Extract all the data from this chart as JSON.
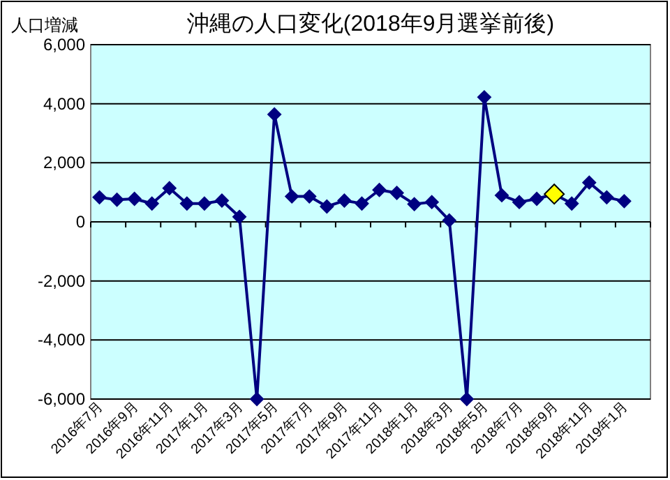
{
  "chart_data": {
    "type": "line",
    "title": "沖縄の人口変化(2018年9月選挙前後)",
    "ylabel": "人口増減",
    "categories": [
      "2016年7月",
      null,
      "2016年9月",
      null,
      "2016年11月",
      null,
      "2017年1月",
      null,
      "2017年3月",
      null,
      "2017年5月",
      null,
      "2017年7月",
      null,
      "2017年9月",
      null,
      "2017年11月",
      null,
      "2018年1月",
      null,
      "2018年3月",
      null,
      "2018年5月",
      null,
      "2018年7月",
      null,
      "2018年9月",
      null,
      "2018年11月",
      null,
      "2019年1月",
      null
    ],
    "series": [
      {
        "color": "#000080",
        "colors": [
          "#000080",
          "#000080",
          "#000080",
          "#000080",
          "#000080",
          "#000080",
          "#000080",
          "#000080",
          "#000080",
          "#000080",
          "#000080",
          "#000080",
          "#000080",
          "#000080",
          "#000080",
          "#000080",
          "#000080",
          "#000080",
          "#000080",
          "#000080",
          "#000080",
          "#000080",
          "#000080",
          "#000080",
          "#000080",
          "#000080",
          "#ffff00",
          "#000080",
          "#000080",
          "#000080",
          "#000080",
          null
        ],
        "values": [
          830,
          750,
          780,
          620,
          1140,
          620,
          620,
          720,
          170,
          -6000,
          3640,
          860,
          860,
          520,
          720,
          620,
          1080,
          980,
          600,
          670,
          50,
          -6000,
          4220,
          900,
          670,
          780,
          940,
          620,
          1330,
          830,
          700,
          null
        ]
      }
    ],
    "ylim": [
      -6000,
      6000
    ],
    "yticks": [
      {
        "value": -6000,
        "label": "-6,000"
      },
      {
        "value": -4000,
        "label": "-4,000"
      },
      {
        "value": -2000,
        "label": "-2,000"
      },
      0,
      {
        "value": 2000,
        "label": "2,000"
      },
      {
        "value": 4000,
        "label": "4,000"
      },
      {
        "value": 6000,
        "label": "6,000"
      }
    ],
    "grid": "y",
    "marker": "diamond"
  }
}
